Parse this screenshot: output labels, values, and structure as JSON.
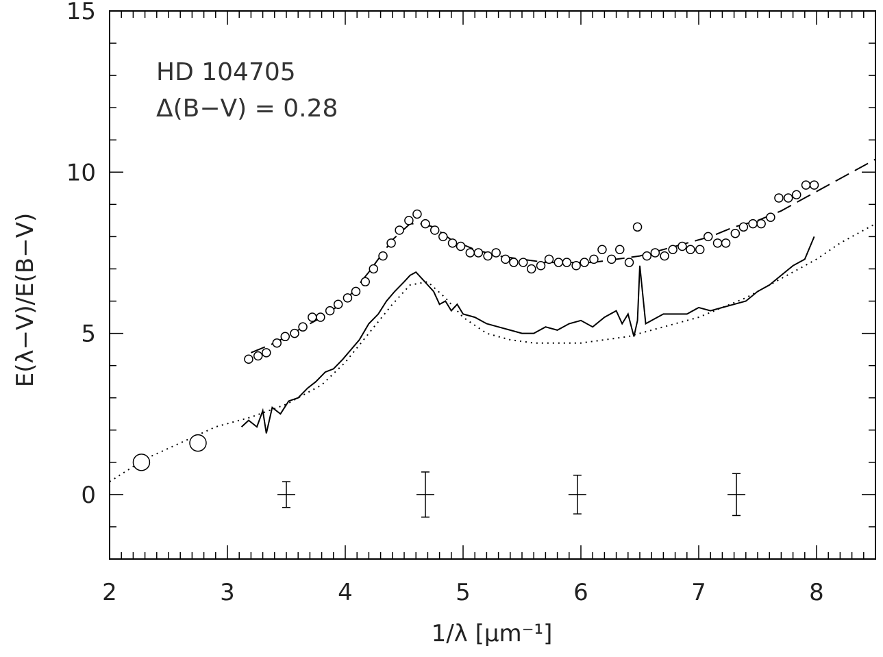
{
  "chart_data": {
    "type": "scatter",
    "annotation": {
      "star": "HD 104705",
      "color_excess": "Δ(B−V) = 0.28"
    },
    "xlabel": "1/λ [μm⁻¹]",
    "ylabel": "E(λ−V)/E(B−V)",
    "xlim": [
      2,
      8.5
    ],
    "ylim": [
      -2,
      15
    ],
    "x_ticks": [
      "2",
      "3",
      "4",
      "5",
      "6",
      "7",
      "8"
    ],
    "y_ticks": [
      "0",
      "5",
      "10",
      "15"
    ],
    "grid": false,
    "series": [
      {
        "style": "open-circles",
        "x": [
          3.18,
          3.26,
          3.33,
          3.42,
          3.49,
          3.57,
          3.64,
          3.72,
          3.79,
          3.87,
          3.94,
          4.02,
          4.09,
          4.17,
          4.24,
          4.32,
          4.39,
          4.46,
          4.54,
          4.61,
          4.68,
          4.76,
          4.83,
          4.91,
          4.98,
          5.06,
          5.13,
          5.21,
          5.28,
          5.36,
          5.43,
          5.51,
          5.58,
          5.66,
          5.73,
          5.81,
          5.88,
          5.96,
          6.03,
          6.11,
          6.18,
          6.26,
          6.33,
          6.41,
          6.48,
          6.56,
          6.63,
          6.71,
          6.78,
          6.86,
          6.93,
          7.01,
          7.08,
          7.16,
          7.23,
          7.31,
          7.38,
          7.46,
          7.53,
          7.61,
          7.68,
          7.76,
          7.83,
          7.91,
          7.98
        ],
        "y": [
          4.2,
          4.3,
          4.4,
          4.7,
          4.9,
          5.0,
          5.2,
          5.5,
          5.5,
          5.7,
          5.9,
          6.1,
          6.3,
          6.6,
          7.0,
          7.4,
          7.8,
          8.2,
          8.5,
          8.7,
          8.4,
          8.2,
          8.0,
          7.8,
          7.7,
          7.5,
          7.5,
          7.4,
          7.5,
          7.3,
          7.2,
          7.2,
          7.0,
          7.1,
          7.3,
          7.2,
          7.2,
          7.1,
          7.2,
          7.3,
          7.6,
          7.3,
          7.6,
          7.2,
          8.3,
          7.4,
          7.5,
          7.4,
          7.6,
          7.7,
          7.6,
          7.6,
          8.0,
          7.8,
          7.8,
          8.1,
          8.3,
          8.4,
          8.4,
          8.6,
          9.2,
          9.2,
          9.3,
          9.6,
          9.6
        ]
      },
      {
        "style": "dashed",
        "x": [
          3.2,
          3.4,
          3.6,
          3.8,
          4.0,
          4.2,
          4.4,
          4.55,
          4.65,
          4.75,
          4.9,
          5.1,
          5.3,
          5.5,
          5.7,
          5.9,
          6.1,
          6.3,
          6.5,
          6.7,
          6.9,
          7.1,
          7.3,
          7.5,
          7.7,
          7.9,
          8.1,
          8.3,
          8.5
        ],
        "y": [
          4.4,
          4.7,
          5.1,
          5.5,
          6.0,
          6.9,
          7.9,
          8.4,
          8.4,
          8.3,
          7.9,
          7.6,
          7.4,
          7.3,
          7.2,
          7.2,
          7.2,
          7.3,
          7.4,
          7.6,
          7.8,
          8.0,
          8.3,
          8.5,
          8.8,
          9.2,
          9.6,
          10.0,
          10.4
        ]
      },
      {
        "style": "solid-spectrum",
        "x": [
          3.12,
          3.18,
          3.25,
          3.3,
          3.33,
          3.38,
          3.45,
          3.52,
          3.6,
          3.68,
          3.75,
          3.83,
          3.9,
          3.98,
          4.05,
          4.12,
          4.2,
          4.28,
          4.35,
          4.42,
          4.5,
          4.55,
          4.6,
          4.65,
          4.7,
          4.75,
          4.8,
          4.85,
          4.9,
          4.95,
          5.0,
          5.1,
          5.2,
          5.3,
          5.4,
          5.5,
          5.6,
          5.7,
          5.8,
          5.9,
          6.0,
          6.1,
          6.2,
          6.3,
          6.35,
          6.4,
          6.45,
          6.48,
          6.5,
          6.55,
          6.6,
          6.7,
          6.8,
          6.9,
          7.0,
          7.1,
          7.2,
          7.3,
          7.4,
          7.5,
          7.6,
          7.7,
          7.8,
          7.9,
          7.98
        ],
        "y": [
          2.1,
          2.3,
          2.1,
          2.6,
          1.9,
          2.7,
          2.5,
          2.9,
          3.0,
          3.3,
          3.5,
          3.8,
          3.9,
          4.2,
          4.5,
          4.8,
          5.3,
          5.6,
          6.0,
          6.3,
          6.6,
          6.8,
          6.9,
          6.7,
          6.5,
          6.3,
          5.9,
          6.0,
          5.7,
          5.9,
          5.6,
          5.5,
          5.3,
          5.2,
          5.1,
          5.0,
          5.0,
          5.2,
          5.1,
          5.3,
          5.4,
          5.2,
          5.5,
          5.7,
          5.3,
          5.6,
          4.9,
          5.4,
          7.1,
          5.3,
          5.4,
          5.6,
          5.6,
          5.6,
          5.8,
          5.7,
          5.8,
          5.9,
          6.0,
          6.3,
          6.5,
          6.8,
          7.1,
          7.3,
          8.0
        ]
      },
      {
        "style": "dotted",
        "x": [
          2.0,
          2.3,
          2.6,
          2.9,
          3.2,
          3.5,
          3.8,
          4.0,
          4.2,
          4.4,
          4.55,
          4.7,
          4.85,
          5.0,
          5.2,
          5.4,
          5.6,
          5.8,
          6.0,
          6.2,
          6.4,
          6.6,
          6.8,
          7.0,
          7.2,
          7.4,
          7.6,
          7.8,
          8.0,
          8.2,
          8.5
        ],
        "y": [
          0.4,
          1.1,
          1.6,
          2.1,
          2.4,
          2.8,
          3.4,
          4.1,
          5.0,
          5.9,
          6.5,
          6.6,
          6.1,
          5.5,
          5.0,
          4.8,
          4.7,
          4.7,
          4.7,
          4.8,
          4.9,
          5.1,
          5.3,
          5.5,
          5.8,
          6.1,
          6.5,
          6.9,
          7.3,
          7.8,
          8.4
        ]
      },
      {
        "style": "large-open-circles",
        "x": [
          2.27,
          2.75
        ],
        "y": [
          1.0,
          1.6
        ]
      }
    ],
    "error_bars": [
      {
        "x": 3.5,
        "y": 0,
        "yerr": 0.4
      },
      {
        "x": 4.68,
        "y": 0,
        "yerr": 0.7
      },
      {
        "x": 5.97,
        "y": 0,
        "yerr": 0.6
      },
      {
        "x": 7.32,
        "y": 0,
        "yerr": 0.65
      }
    ]
  }
}
